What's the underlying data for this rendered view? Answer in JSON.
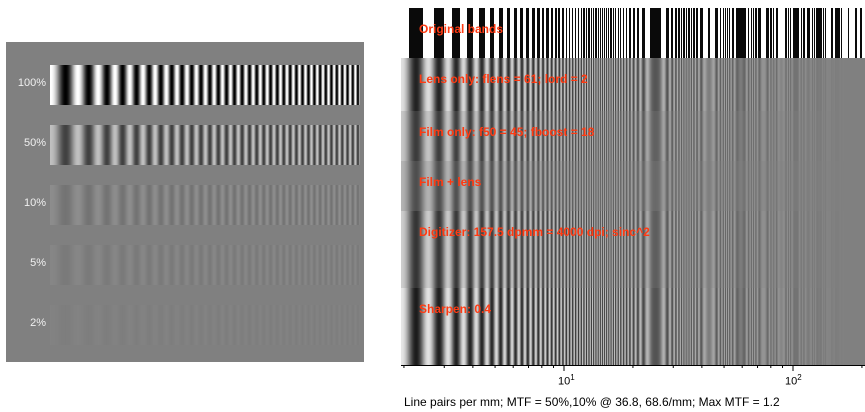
{
  "left_panel": {
    "rows": [
      {
        "label": "100%",
        "contrast": 1.0
      },
      {
        "label": "50%",
        "contrast": 0.5
      },
      {
        "label": "10%",
        "contrast": 0.1
      },
      {
        "label": "5%",
        "contrast": 0.05
      },
      {
        "label": "2%",
        "contrast": 0.02
      }
    ]
  },
  "right_panel": {
    "bands": [
      {
        "label": "Original bands"
      },
      {
        "label": "Lens only:  flens = 61;  lord = 2"
      },
      {
        "label": "Film only:  f50 = 45;  fboost = 18"
      },
      {
        "label": "Film + lens"
      },
      {
        "label": "Digitizer:  157.5 dpmm = 4000 dpi;  sinc^2"
      },
      {
        "label": "Sharpen:  0.4"
      }
    ],
    "label_color": "#ff3a12"
  },
  "axis": {
    "scale": "log",
    "ticks": [
      {
        "base": "10",
        "exp": "1"
      },
      {
        "base": "10",
        "exp": "2"
      }
    ],
    "caption": "Line pairs per mm;  MTF = 50%,10% @ 36.8, 68.6/mm;  Max MTF = 1.2"
  }
}
